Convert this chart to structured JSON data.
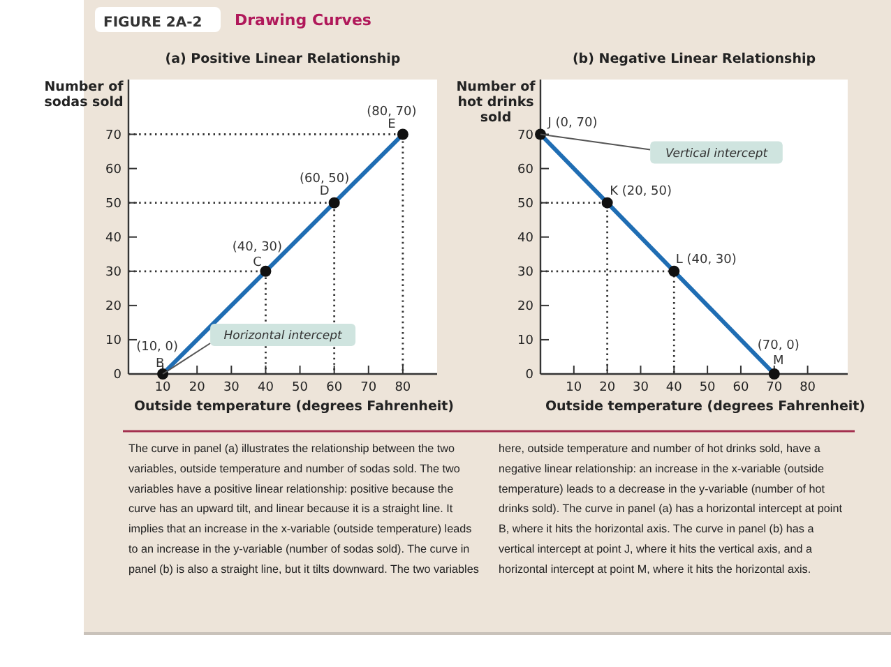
{
  "chart_data": [
    {
      "type": "line",
      "title": "(a) Positive Linear Relationship",
      "xlabel": "Outside temperature (degrees Fahrenheit)",
      "ylabel": "Number of sodas sold",
      "x": [
        10,
        40,
        60,
        80
      ],
      "series": [
        {
          "color": "#1f6db3",
          "values": [
            0,
            30,
            50,
            70
          ]
        },
        {
          "color": "#333333",
          "line_style": "dotted",
          "marker": "none",
          "x": [
            0,
            40,
            40
          ],
          "values": [
            30,
            30,
            0
          ]
        },
        {
          "color": "#333333",
          "line_style": "dotted",
          "marker": "none",
          "x": [
            0,
            60,
            60
          ],
          "values": [
            50,
            50,
            0
          ]
        },
        {
          "color": "#333333",
          "line_style": "dotted",
          "marker": "none",
          "x": [
            0,
            80,
            80
          ],
          "values": [
            70,
            70,
            0
          ]
        }
      ],
      "xlim": [
        0,
        90
      ],
      "ylim": [
        0,
        86
      ],
      "xticks": [
        10,
        20,
        30,
        40,
        50,
        60,
        70,
        80
      ],
      "yticks": [
        0,
        10,
        20,
        30,
        40,
        50,
        60,
        70
      ],
      "marker": "circle",
      "grid": false,
      "annotations": [
        "FIGURE 2A-2",
        "Drawing Curves",
        "The curve in panel (a) illustrates the relationship between the two variables, outside temperature and number of sodas sold. The two variables have a positive linear relationship: positive because the curve has an upward tilt, and linear because it is a straight line. It implies that an increase in the x-variable (outside temperature) leads to an increase in the y-variable (number of sodas sold). The curve in panel (b) is also a straight line, but it tilts downward. The two variables here, outside temperature and number of hot drinks sold, have a negative linear relationship: an increase in the x-variable (outside temperature) leads to a decrease in the y-variable (number of hot drinks sold). The curve in panel (a) has a horizontal intercept at point B, where it hits the horizontal axis. The curve in panel (b) has a vertical intercept at point J, where it hits the vertical axis, and a horizontal intercept at point M, where it hits the horizontal axis.",
        {
          "text": "(10, 0)",
          "x": 10,
          "y": 0
        },
        {
          "text": "B",
          "x": 10,
          "y": 0
        },
        {
          "text": "(40, 30)",
          "x": 40,
          "y": 30
        },
        {
          "text": "C",
          "x": 40,
          "y": 30
        },
        {
          "text": "(60, 50)",
          "x": 60,
          "y": 50
        },
        {
          "text": "D",
          "x": 60,
          "y": 50
        },
        {
          "text": "(80, 70)",
          "x": 80,
          "y": 70
        },
        {
          "text": "E",
          "x": 80,
          "y": 70
        },
        {
          "text": "Horizontal intercept",
          "x": 10,
          "y": 0
        }
      ]
    },
    {
      "type": "line",
      "title": "(b) Negative Linear Relationship",
      "xlabel": "Outside temperature (degrees Fahrenheit)",
      "ylabel": "Number of hot drinks sold",
      "x": [
        0,
        20,
        40,
        70
      ],
      "series": [
        {
          "color": "#1f6db3",
          "values": [
            70,
            50,
            30,
            0
          ]
        },
        {
          "color": "#333333",
          "line_style": "dotted",
          "marker": "none",
          "x": [
            0,
            20,
            20
          ],
          "values": [
            50,
            50,
            0
          ]
        },
        {
          "color": "#333333",
          "line_style": "dotted",
          "marker": "none",
          "x": [
            0,
            40,
            40
          ],
          "values": [
            30,
            30,
            0
          ]
        }
      ],
      "xlim": [
        0,
        92
      ],
      "ylim": [
        0,
        86
      ],
      "xticks": [
        10,
        20,
        30,
        40,
        50,
        60,
        70,
        80
      ],
      "yticks": [
        0,
        10,
        20,
        30,
        40,
        50,
        60,
        70
      ],
      "marker": "circle",
      "grid": false,
      "annotations": [
        {
          "text": "J (0, 70)",
          "x": 0,
          "y": 70
        },
        {
          "text": "Vertical intercept",
          "x": 0,
          "y": 70
        },
        {
          "text": "K (20, 50)",
          "x": 20,
          "y": 50
        },
        {
          "text": "L (40, 30)",
          "x": 40,
          "y": 30
        },
        {
          "text": "(70, 0)",
          "x": 70,
          "y": 0
        },
        {
          "text": "M",
          "x": 70,
          "y": 0
        }
      ]
    }
  ]
}
